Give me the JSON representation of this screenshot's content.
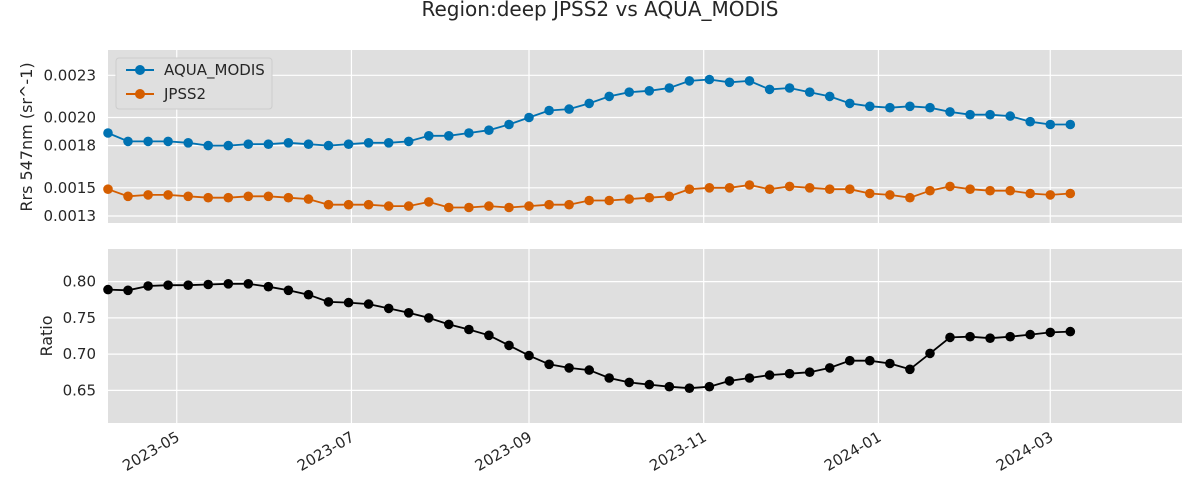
{
  "chart_data": [
    {
      "type": "line",
      "title": "Region:deep JPSS2 vs AQUA_MODIS",
      "ylabel": "Rrs 547nm (sr^-1)",
      "ylim": [
        0.00125,
        0.00248
      ],
      "yticks": [
        0.0013,
        0.0015,
        0.0018,
        0.002,
        0.0023
      ],
      "ytick_labels": [
        "0.0013",
        "0.0015",
        "0.0018",
        "0.0020",
        "0.0023"
      ],
      "grid": true,
      "legend_position": "top-left",
      "series": [
        {
          "name": "AQUA_MODIS",
          "color": "#0072b2",
          "values": [
            0.00189,
            0.00183,
            0.00183,
            0.00183,
            0.00182,
            0.0018,
            0.0018,
            0.00181,
            0.00181,
            0.00182,
            0.00181,
            0.0018,
            0.00181,
            0.00182,
            0.00182,
            0.00183,
            0.00187,
            0.00187,
            0.00189,
            0.00191,
            0.00195,
            0.002,
            0.00205,
            0.00206,
            0.0021,
            0.00215,
            0.00218,
            0.00219,
            0.00221,
            0.00226,
            0.00227,
            0.00225,
            0.00226,
            0.0022,
            0.00221,
            0.00218,
            0.00215,
            0.0021,
            0.00208,
            0.00207,
            0.00208,
            0.00207,
            0.00204,
            0.00202,
            0.00202,
            0.00201,
            0.00197,
            0.00195,
            0.00195
          ]
        },
        {
          "name": "JPSS2",
          "color": "#d55e00",
          "values": [
            0.00149,
            0.00144,
            0.00145,
            0.00145,
            0.00144,
            0.00143,
            0.00143,
            0.00144,
            0.00144,
            0.00143,
            0.00142,
            0.00138,
            0.00138,
            0.00138,
            0.00137,
            0.00137,
            0.0014,
            0.00136,
            0.00136,
            0.00137,
            0.00136,
            0.00137,
            0.00138,
            0.00138,
            0.00141,
            0.00141,
            0.00142,
            0.00143,
            0.00144,
            0.00149,
            0.0015,
            0.0015,
            0.00152,
            0.00149,
            0.00151,
            0.0015,
            0.00149,
            0.00149,
            0.00146,
            0.00145,
            0.00143,
            0.00148,
            0.00151,
            0.00149,
            0.00148,
            0.00148,
            0.00146,
            0.00145,
            0.00146
          ]
        }
      ]
    },
    {
      "type": "line",
      "ylabel": "Ratio",
      "ylim": [
        0.605,
        0.845
      ],
      "yticks": [
        0.65,
        0.7,
        0.75,
        0.8
      ],
      "ytick_labels": [
        "0.65",
        "0.70",
        "0.75",
        "0.80"
      ],
      "grid": true,
      "series": [
        {
          "color": "#000000",
          "values": [
            0.789,
            0.788,
            0.794,
            0.795,
            0.795,
            0.796,
            0.797,
            0.797,
            0.793,
            0.788,
            0.782,
            0.772,
            0.771,
            0.769,
            0.763,
            0.757,
            0.75,
            0.741,
            0.734,
            0.726,
            0.712,
            0.698,
            0.686,
            0.681,
            0.678,
            0.667,
            0.661,
            0.658,
            0.655,
            0.653,
            0.655,
            0.663,
            0.667,
            0.671,
            0.673,
            0.675,
            0.681,
            0.691,
            0.691,
            0.687,
            0.679,
            0.701,
            0.723,
            0.724,
            0.722,
            0.724,
            0.727,
            0.73,
            0.731
          ]
        }
      ]
    }
  ],
  "x_dates": [
    "2023-04-07",
    "2023-04-14",
    "2023-04-21",
    "2023-04-28",
    "2023-05-05",
    "2023-05-12",
    "2023-05-19",
    "2023-05-26",
    "2023-06-02",
    "2023-06-09",
    "2023-06-16",
    "2023-06-23",
    "2023-06-30",
    "2023-07-07",
    "2023-07-14",
    "2023-07-21",
    "2023-07-28",
    "2023-08-04",
    "2023-08-11",
    "2023-08-18",
    "2023-08-25",
    "2023-09-01",
    "2023-09-08",
    "2023-09-15",
    "2023-09-22",
    "2023-09-29",
    "2023-10-06",
    "2023-10-13",
    "2023-10-20",
    "2023-10-27",
    "2023-11-03",
    "2023-11-10",
    "2023-11-17",
    "2023-11-24",
    "2023-12-01",
    "2023-12-08",
    "2023-12-15",
    "2023-12-22",
    "2023-12-29",
    "2024-01-05",
    "2024-01-12",
    "2024-01-19",
    "2024-01-26",
    "2024-02-02",
    "2024-02-09",
    "2024-02-16",
    "2024-02-23",
    "2024-03-01",
    "2024-03-08"
  ],
  "xlim": [
    "2023-04-07",
    "2024-04-16"
  ],
  "x_ticks": [
    "2023-05-01",
    "2023-07-01",
    "2023-09-01",
    "2023-11-01",
    "2024-01-01",
    "2024-03-01"
  ],
  "x_tick_labels": [
    "2023-05",
    "2023-07",
    "2023-09",
    "2023-11",
    "2024-01",
    "2024-03"
  ]
}
